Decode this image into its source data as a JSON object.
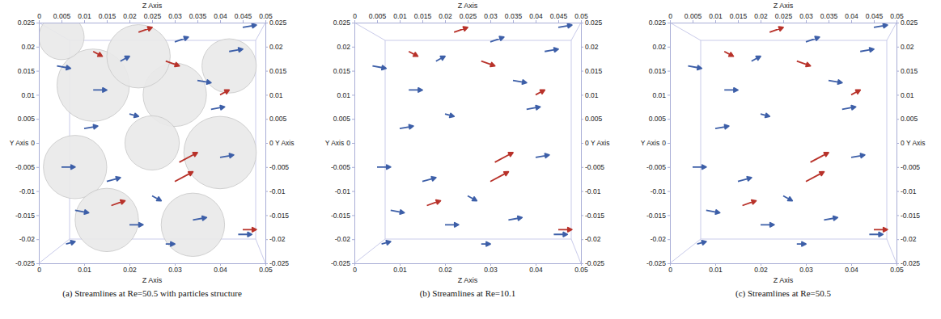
{
  "chart_data": [
    {
      "type": "quiver",
      "title": "(a) Streamlines at Re=50.5 with particles structure",
      "xlabel": "Z Axis",
      "x2label": "Z Axis",
      "ylabel": "Y Axis",
      "y2label": "Y Axis",
      "xlim": [
        0,
        0.05
      ],
      "x2lim": [
        0,
        0.05
      ],
      "ylim": [
        -0.025,
        0.025
      ],
      "y2lim": [
        -0.025,
        0.025
      ],
      "xticks": [
        0,
        0.01,
        0.02,
        0.03,
        0.04,
        0.05
      ],
      "x2ticks": [
        0,
        0.005,
        0.01,
        0.015,
        0.02,
        0.025,
        0.03,
        0.035,
        0.04,
        0.045,
        0.05
      ],
      "yticks": [
        -0.025,
        -0.02,
        -0.015,
        -0.01,
        -0.005,
        0,
        0.005,
        0.01,
        0.015,
        0.02,
        0.025
      ],
      "y2ticks": [
        -0.025,
        -0.02,
        -0.015,
        -0.01,
        -0.005,
        0,
        0.005,
        0.01,
        0.015,
        0.02,
        0.025
      ],
      "particles": {
        "x": [
          0.012,
          0.03,
          0.042,
          0.022,
          0.008,
          0.025,
          0.04,
          0.015,
          0.034,
          0.005
        ],
        "y": [
          0.012,
          0.01,
          0.016,
          0.018,
          -0.005,
          0.0,
          -0.002,
          -0.016,
          -0.017,
          0.022
        ],
        "r": [
          0.008,
          0.007,
          0.006,
          0.007,
          0.007,
          0.006,
          0.008,
          0.007,
          0.007,
          0.005
        ]
      },
      "series": [
        {
          "color": "#3d5fa8",
          "x": [
            0.045,
            0.012,
            0.018,
            0.03,
            0.035,
            0.01,
            0.02,
            0.038,
            0.005,
            0.015,
            0.025,
            0.04,
            0.008,
            0.02,
            0.034,
            0.044,
            0.006,
            0.028,
            0.042,
            0.004
          ],
          "y": [
            0.024,
            0.011,
            0.017,
            0.021,
            0.013,
            0.003,
            0.006,
            0.007,
            -0.005,
            -0.008,
            -0.011,
            -0.003,
            -0.014,
            -0.017,
            -0.016,
            -0.019,
            -0.021,
            -0.021,
            0.019,
            0.016
          ],
          "u": [
            0.003,
            0.003,
            0.002,
            0.003,
            0.003,
            0.003,
            0.002,
            0.003,
            0.003,
            0.003,
            0.002,
            0.003,
            0.003,
            0.003,
            0.003,
            0.003,
            0.002,
            0.002,
            0.003,
            0.003
          ],
          "v": [
            0.0005,
            0,
            0.001,
            0.001,
            -0.0005,
            0.0005,
            -0.0005,
            0.0005,
            0,
            0.0008,
            -0.001,
            0.0005,
            -0.0005,
            0,
            0.0005,
            0,
            0.0005,
            0,
            0.0005,
            -0.0005
          ]
        },
        {
          "color": "#b8322a",
          "x": [
            0.022,
            0.028,
            0.031,
            0.03,
            0.016,
            0.045,
            0.04,
            0.012
          ],
          "y": [
            0.023,
            0.017,
            -0.004,
            -0.008,
            -0.013,
            -0.018,
            0.01,
            0.019
          ],
          "u": [
            0.003,
            0.003,
            0.004,
            0.004,
            0.003,
            0.003,
            0.002,
            0.002
          ],
          "v": [
            0.001,
            -0.001,
            0.002,
            0.002,
            0.001,
            0,
            0.001,
            -0.001
          ]
        }
      ]
    },
    {
      "type": "quiver",
      "title": "(b) Streamlines at Re=10.1",
      "xlabel": "Z Axis",
      "x2label": "Z Axis",
      "ylabel": "Y Axis",
      "y2label": "Y Axis",
      "xlim": [
        0,
        0.05
      ],
      "x2lim": [
        0,
        0.05
      ],
      "ylim": [
        -0.025,
        0.025
      ],
      "y2lim": [
        -0.025,
        0.025
      ],
      "xticks": [
        0,
        0.01,
        0.02,
        0.03,
        0.04,
        0.05
      ],
      "x2ticks": [
        0,
        0.005,
        0.01,
        0.015,
        0.02,
        0.025,
        0.03,
        0.035,
        0.04,
        0.045,
        0.05
      ],
      "yticks": [
        -0.025,
        -0.02,
        -0.015,
        -0.01,
        -0.005,
        0,
        0.005,
        0.01,
        0.015,
        0.02,
        0.025
      ],
      "y2ticks": [
        -0.025,
        -0.02,
        -0.015,
        -0.01,
        -0.005,
        0,
        0.005,
        0.01,
        0.015,
        0.02,
        0.025
      ],
      "series": [
        {
          "color": "#3d5fa8",
          "x": [
            0.045,
            0.012,
            0.018,
            0.03,
            0.035,
            0.01,
            0.02,
            0.038,
            0.005,
            0.015,
            0.025,
            0.04,
            0.008,
            0.02,
            0.034,
            0.044,
            0.006,
            0.028,
            0.042,
            0.004
          ],
          "y": [
            0.024,
            0.011,
            0.017,
            0.021,
            0.013,
            0.003,
            0.006,
            0.007,
            -0.005,
            -0.008,
            -0.011,
            -0.003,
            -0.014,
            -0.017,
            -0.016,
            -0.019,
            -0.021,
            -0.021,
            0.019,
            0.016
          ],
          "u": [
            0.003,
            0.003,
            0.002,
            0.003,
            0.003,
            0.003,
            0.002,
            0.003,
            0.003,
            0.003,
            0.002,
            0.003,
            0.003,
            0.003,
            0.003,
            0.003,
            0.002,
            0.002,
            0.003,
            0.003
          ],
          "v": [
            0.0005,
            0,
            0.001,
            0.001,
            -0.0005,
            0.0005,
            -0.0005,
            0.0005,
            0,
            0.0008,
            -0.001,
            0.0005,
            -0.0005,
            0,
            0.0005,
            0,
            0.0005,
            0,
            0.0005,
            -0.0005
          ]
        },
        {
          "color": "#b8322a",
          "x": [
            0.022,
            0.028,
            0.031,
            0.03,
            0.016,
            0.045,
            0.04,
            0.012
          ],
          "y": [
            0.023,
            0.017,
            -0.004,
            -0.008,
            -0.013,
            -0.018,
            0.01,
            0.019
          ],
          "u": [
            0.003,
            0.003,
            0.004,
            0.004,
            0.003,
            0.003,
            0.002,
            0.002
          ],
          "v": [
            0.001,
            -0.001,
            0.002,
            0.002,
            0.001,
            0,
            0.001,
            -0.001
          ]
        }
      ]
    },
    {
      "type": "quiver",
      "title": "(c) Streamlines at Re=50.5",
      "xlabel": "Z Axis",
      "x2label": "Z Axis",
      "ylabel": "Y Axis",
      "y2label": "Y Axis",
      "xlim": [
        0,
        0.05
      ],
      "x2lim": [
        0,
        0.05
      ],
      "ylim": [
        -0.025,
        0.025
      ],
      "y2lim": [
        -0.025,
        0.025
      ],
      "xticks": [
        0,
        0.01,
        0.02,
        0.03,
        0.04,
        0.05
      ],
      "x2ticks": [
        0,
        0.005,
        0.01,
        0.015,
        0.02,
        0.025,
        0.03,
        0.035,
        0.04,
        0.045,
        0.05
      ],
      "yticks": [
        -0.025,
        -0.02,
        -0.015,
        -0.01,
        -0.005,
        0,
        0.005,
        0.01,
        0.015,
        0.02,
        0.025
      ],
      "y2ticks": [
        -0.025,
        -0.02,
        -0.015,
        -0.01,
        -0.005,
        0,
        0.005,
        0.01,
        0.015,
        0.02,
        0.025
      ],
      "series": [
        {
          "color": "#3d5fa8",
          "x": [
            0.045,
            0.012,
            0.018,
            0.03,
            0.035,
            0.01,
            0.02,
            0.038,
            0.005,
            0.015,
            0.025,
            0.04,
            0.008,
            0.02,
            0.034,
            0.044,
            0.006,
            0.028,
            0.042,
            0.004
          ],
          "y": [
            0.024,
            0.011,
            0.017,
            0.021,
            0.013,
            0.003,
            0.006,
            0.007,
            -0.005,
            -0.008,
            -0.011,
            -0.003,
            -0.014,
            -0.017,
            -0.016,
            -0.019,
            -0.021,
            -0.021,
            0.019,
            0.016
          ],
          "u": [
            0.003,
            0.003,
            0.002,
            0.003,
            0.003,
            0.003,
            0.002,
            0.003,
            0.003,
            0.003,
            0.002,
            0.003,
            0.003,
            0.003,
            0.003,
            0.003,
            0.002,
            0.002,
            0.003,
            0.003
          ],
          "v": [
            0.0005,
            0,
            0.001,
            0.001,
            -0.0005,
            0.0005,
            -0.0005,
            0.0005,
            0,
            0.0008,
            -0.001,
            0.0005,
            -0.0005,
            0,
            0.0005,
            0,
            0.0005,
            0,
            0.0005,
            -0.0005
          ]
        },
        {
          "color": "#b8322a",
          "x": [
            0.022,
            0.028,
            0.031,
            0.03,
            0.016,
            0.045,
            0.04,
            0.012
          ],
          "y": [
            0.023,
            0.017,
            -0.004,
            -0.008,
            -0.013,
            -0.018,
            0.01,
            0.019
          ],
          "u": [
            0.003,
            0.003,
            0.004,
            0.004,
            0.003,
            0.003,
            0.002,
            0.002
          ],
          "v": [
            0.001,
            -0.001,
            0.002,
            0.002,
            0.001,
            0,
            0.001,
            -0.001
          ]
        }
      ]
    }
  ]
}
